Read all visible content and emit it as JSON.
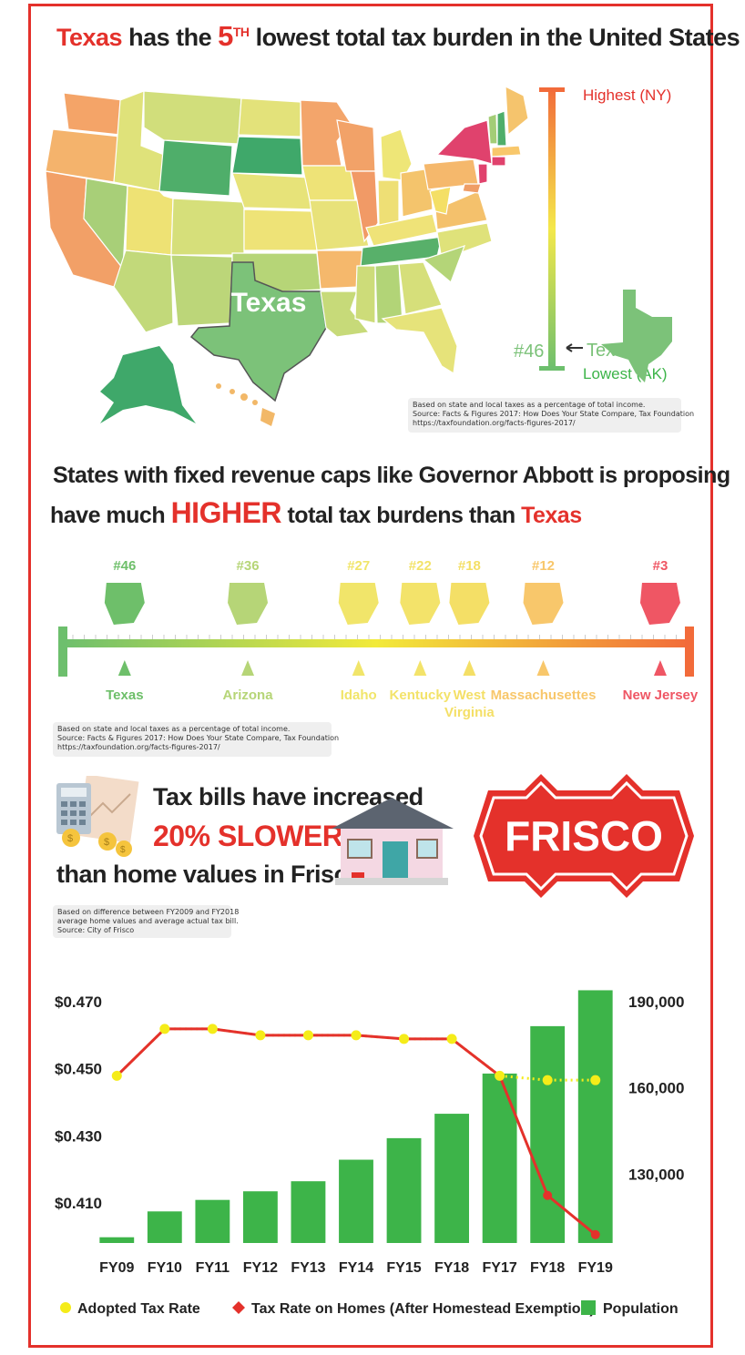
{
  "section1": {
    "title_state": "Texas",
    "title_mid": "has the",
    "title_rank": "5",
    "title_rank_sup": "TH",
    "title_rest": "lowest total tax burden in the United States",
    "map_label": "Texas",
    "scale_top": "Highest (NY)",
    "scale_bottom": "Lowest (AK)",
    "texas_rank": "#46",
    "texas_marker": "Texas",
    "note": [
      "Based on state and local taxes as a percentage of total income.",
      "Source: Facts & Figures 2017: How Does Your State Compare, Tax Foundation",
      "https://taxfoundation.org/facts-figures-2017/"
    ]
  },
  "section2": {
    "heading_line1": "States with fixed revenue caps like Governor Abbott is proposing",
    "heading_pre": "have much",
    "heading_emph": "HIGHER",
    "heading_post": "total tax burdens than",
    "heading_state": "Texas",
    "states": [
      {
        "rank": "#46",
        "name": "Texas",
        "color": "#6ebf6a",
        "pos": 0.09
      },
      {
        "rank": "#36",
        "name": "Arizona",
        "color": "#b6d577",
        "pos": 0.29
      },
      {
        "rank": "#27",
        "name": "Idaho",
        "color": "#f1e56a",
        "pos": 0.47
      },
      {
        "rank": "#22",
        "name": "Kentucky",
        "color": "#f3e36a",
        "pos": 0.57
      },
      {
        "rank": "#18",
        "name": "West Virginia",
        "color": "#f4df66",
        "pos": 0.65
      },
      {
        "rank": "#12",
        "name": "Massachusettes",
        "color": "#f8c76b",
        "pos": 0.77
      },
      {
        "rank": "#3",
        "name": "New Jersey",
        "color": "#ef5664",
        "pos": 0.96
      }
    ],
    "note": [
      "Based on state and local taxes as a percentage of total income.",
      "Source: Facts & Figures 2017: How Does Your State Compare, Tax Foundation",
      "https://taxfoundation.org/facts-figures-2017/"
    ]
  },
  "section3": {
    "line1": "Tax bills have  increased",
    "line2": "20% SLOWER",
    "line3": "than home values in Frisco.",
    "logo_text": "FRISCO",
    "note": [
      "Based on difference between FY2009 and FY2018",
      "average home values and average actual tax bill.",
      "Source: City of Frisco"
    ]
  },
  "chart_data": {
    "type": "bar",
    "categories": [
      "FY09",
      "FY10",
      "FY11",
      "FY12",
      "FY13",
      "FY14",
      "FY15",
      "FY18",
      "FY17",
      "FY18",
      "FY19"
    ],
    "left_axis_ticks": [
      "$0.470",
      "$0.450",
      "$0.430",
      "$0.410"
    ],
    "right_axis_ticks": [
      "190,000",
      "160,000",
      "130,000"
    ],
    "left_ylim": [
      0.398,
      0.476
    ],
    "right_ylim": [
      106000,
      197000
    ],
    "series": [
      {
        "name": "Population",
        "type": "bar",
        "axis": "right",
        "color": "#3db449",
        "values": [
          108000,
          117000,
          121000,
          124000,
          127500,
          135000,
          142500,
          151000,
          165000,
          181500,
          194000
        ]
      },
      {
        "name": "Adopted Tax Rate",
        "type": "line",
        "axis": "left",
        "color": "#f5ec19",
        "values": [
          0.4479,
          0.4619,
          0.4619,
          0.46,
          0.46,
          0.46,
          0.4589,
          0.4589,
          0.4479,
          0.4466,
          0.4466
        ]
      },
      {
        "name": "Tax Rate on Homes (After Homestead Exemption)",
        "type": "line",
        "axis": "left",
        "color": "#e4312b",
        "values": [
          0.4479,
          0.4619,
          0.4619,
          0.46,
          0.46,
          0.46,
          0.4589,
          0.4589,
          0.4479,
          0.4122,
          0.4005
        ]
      }
    ],
    "legend": [
      "Adopted Tax Rate",
      "Tax Rate on Homes (After Homestead Exemption)",
      "Population"
    ],
    "legend_position": "bottom"
  },
  "colors": {
    "accent": "#e4312b",
    "bar": "#3db449",
    "note_bg": "#efefef"
  }
}
